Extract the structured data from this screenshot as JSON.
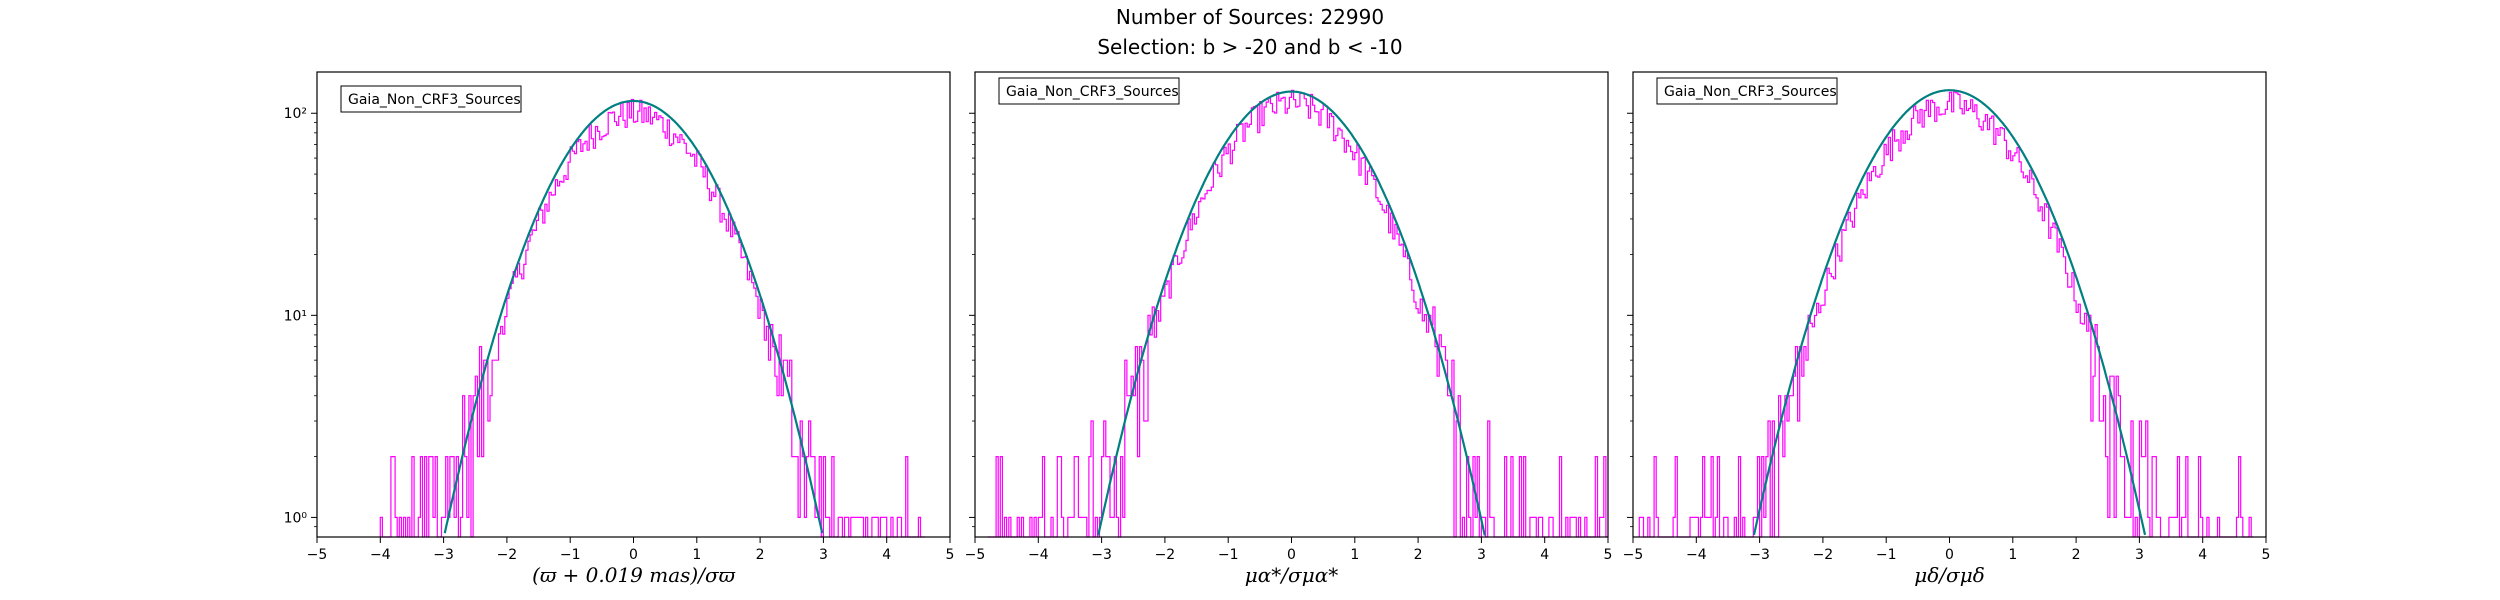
{
  "figure": {
    "suptitle_line1": "Number of Sources: 22990",
    "suptitle_line2": "Selection: b > -20 and b < -10"
  },
  "colors": {
    "histogram": "#ff00ff",
    "fit": "#008080"
  },
  "chart_data": [
    {
      "type": "line",
      "title": "",
      "legend": "Gaia_Non_CRF3_Sources",
      "legend_placement": "top-left",
      "xlabel": "(ϖ + 0.019 mas)/σϖ",
      "ylabel": "",
      "xlim": [
        -5,
        5
      ],
      "ylim": [
        0.8,
        160
      ],
      "yscale": "log",
      "xticks": [
        "−5",
        "−4",
        "−3",
        "−2",
        "−1",
        "0",
        "1",
        "2",
        "3",
        "4",
        "5"
      ],
      "yticks": [
        "10⁰",
        "10¹",
        "10²"
      ],
      "grid": false,
      "series": [
        {
          "kind": "histogram",
          "x_range": [
            -4.0,
            4.6
          ],
          "peak": 100,
          "sigma": 0.95
        },
        {
          "kind": "gaussian_fit",
          "peak": 115,
          "sigma": 0.95,
          "x_range": [
            -3.35,
            3.35
          ]
        }
      ]
    },
    {
      "type": "line",
      "title": "",
      "legend": "Gaia_Non_CRF3_Sources",
      "legend_placement": "top-left",
      "xlabel": "μα*/σμα*",
      "ylabel": "",
      "xlim": [
        -5,
        5
      ],
      "ylim": [
        0.8,
        160
      ],
      "yscale": "log",
      "xticks": [
        "−5",
        "−4",
        "−3",
        "−2",
        "−1",
        "0",
        "1",
        "2",
        "3",
        "4",
        "5"
      ],
      "yticks": [
        "10⁰",
        "10¹",
        "10²"
      ],
      "grid": false,
      "series": [
        {
          "kind": "histogram",
          "x_range": [
            -4.8,
            5.0
          ],
          "peak": 112,
          "sigma": 0.95
        },
        {
          "kind": "gaussian_fit",
          "peak": 128,
          "sigma": 0.96,
          "x_range": [
            -3.45,
            3.45
          ]
        }
      ]
    },
    {
      "type": "line",
      "title": "",
      "legend": "Gaia_Non_CRF3_Sources",
      "legend_placement": "top-left",
      "xlabel": "μδ/σμδ",
      "ylabel": "",
      "xlim": [
        -5,
        5
      ],
      "ylim": [
        0.8,
        160
      ],
      "yscale": "log",
      "xticks": [
        "−5",
        "−4",
        "−3",
        "−2",
        "−1",
        "0",
        "1",
        "2",
        "3",
        "4",
        "5"
      ],
      "yticks": [
        "10⁰",
        "10¹",
        "10²"
      ],
      "grid": false,
      "series": [
        {
          "kind": "histogram",
          "x_range": [
            -4.9,
            4.8
          ],
          "peak": 110,
          "sigma": 0.96
        },
        {
          "kind": "gaussian_fit",
          "peak": 130,
          "sigma": 0.97,
          "x_range": [
            -3.45,
            3.45
          ]
        }
      ]
    }
  ]
}
